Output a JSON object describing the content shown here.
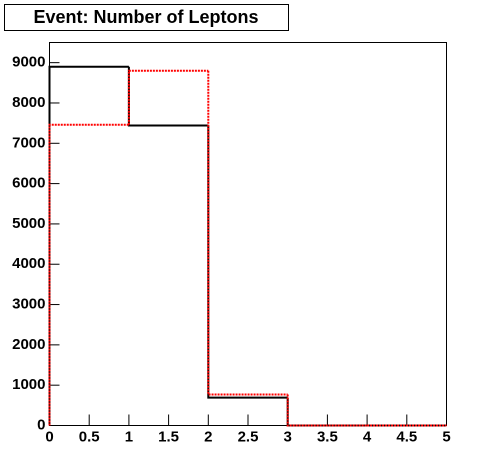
{
  "chart_data": {
    "type": "histogram",
    "title": "Event: Number of Leptons",
    "bins": [
      0,
      1,
      2,
      3,
      4,
      5
    ],
    "series": [
      {
        "color": "#000000",
        "style": "solid",
        "values": [
          8900,
          7440,
          690,
          0,
          0
        ]
      },
      {
        "color": "#ff0000",
        "style": "dashed",
        "values": [
          7460,
          8800,
          770,
          0,
          0
        ]
      }
    ],
    "xlim": [
      0,
      5
    ],
    "xticks": [
      0,
      0.5,
      1,
      1.5,
      2,
      2.5,
      3,
      3.5,
      4,
      4.5,
      5
    ],
    "ylim": [
      0,
      9500
    ],
    "yticks": [
      0,
      1000,
      2000,
      3000,
      4000,
      5000,
      6000,
      7000,
      8000,
      9000
    ]
  }
}
